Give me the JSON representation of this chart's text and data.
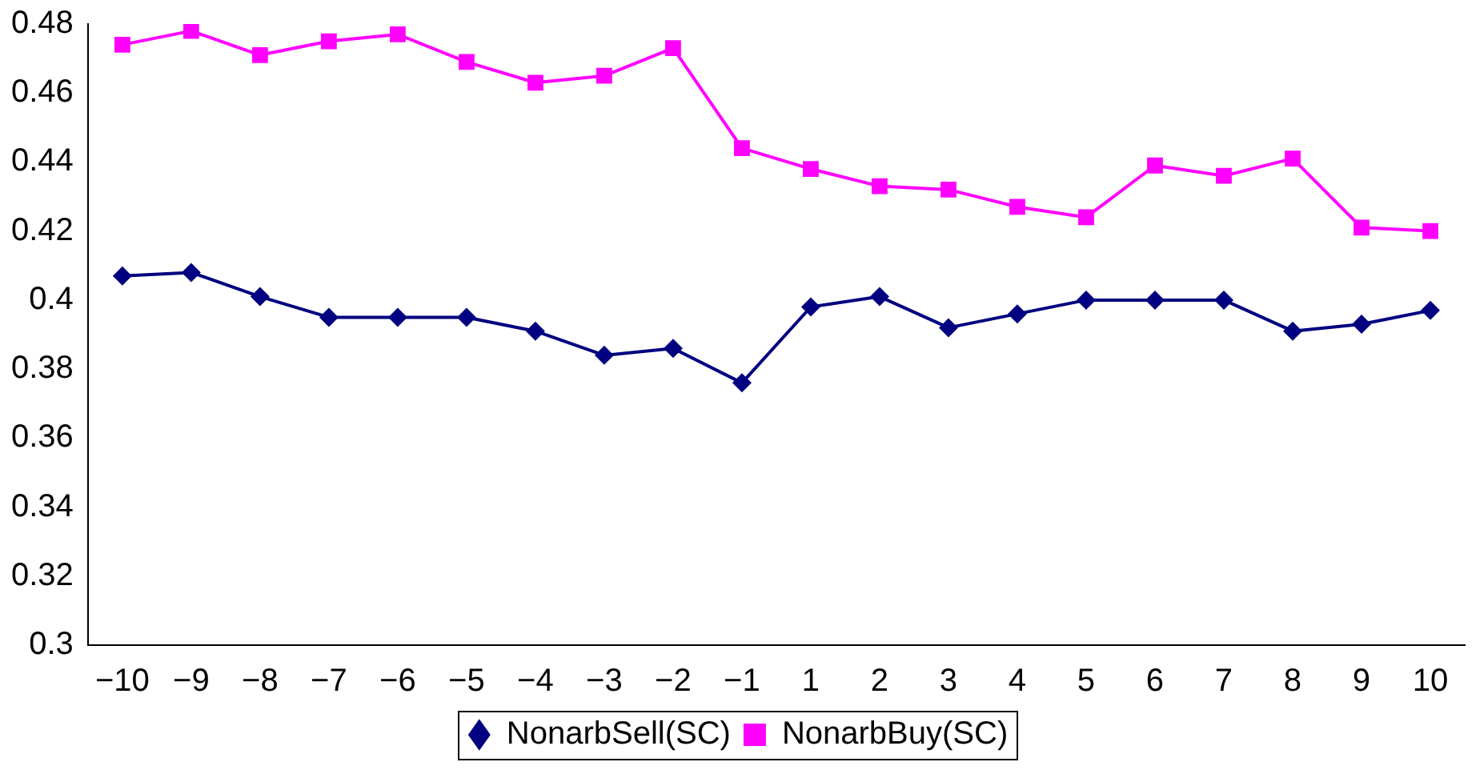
{
  "chart_data": {
    "type": "line",
    "categories": [
      "−10",
      "−9",
      "−8",
      "−7",
      "−6",
      "−5",
      "−4",
      "−3",
      "−2",
      "−1",
      "1",
      "2",
      "3",
      "4",
      "5",
      "6",
      "7",
      "8",
      "9",
      "10"
    ],
    "series": [
      {
        "name": "NonarbSell(SC)",
        "color": "#000080",
        "marker": "diamond",
        "values": [
          0.407,
          0.408,
          0.401,
          0.395,
          0.395,
          0.395,
          0.391,
          0.384,
          0.386,
          0.376,
          0.398,
          0.401,
          0.392,
          0.396,
          0.4,
          0.4,
          0.4,
          0.391,
          0.393,
          0.397
        ]
      },
      {
        "name": "NonarbBuy(SC)",
        "color": "#ff00ff",
        "marker": "square",
        "values": [
          0.474,
          0.478,
          0.471,
          0.475,
          0.477,
          0.469,
          0.463,
          0.465,
          0.473,
          0.444,
          0.438,
          0.433,
          0.432,
          0.427,
          0.424,
          0.439,
          0.436,
          0.441,
          0.421,
          0.42
        ]
      }
    ],
    "ylim": [
      0.3,
      0.48
    ],
    "yticks": [
      0.3,
      0.32,
      0.34,
      0.36,
      0.38,
      0.4,
      0.42,
      0.44,
      0.46,
      0.48
    ],
    "grid": false,
    "legend": "bottom",
    "line_style": "solid"
  }
}
